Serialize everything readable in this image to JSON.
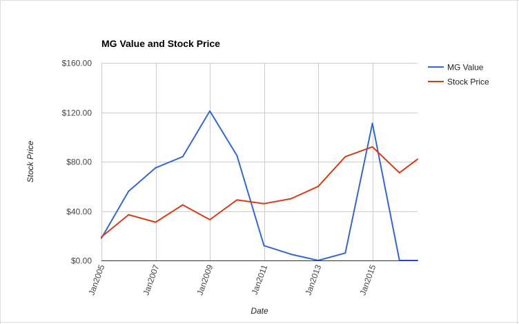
{
  "chart_data": {
    "type": "line",
    "title": "MG Value and Stock Price",
    "xlabel": "Date",
    "ylabel": "Stock Price",
    "x": [
      "2005-01",
      "2006-01",
      "2007-01",
      "2008-01",
      "2009-01",
      "2010-01",
      "2011-01",
      "2012-01",
      "2013-01",
      "2014-01",
      "2015-01",
      "2016-01",
      "2016-09"
    ],
    "x_ticks": [
      "Jan2005",
      "Jan2007",
      "Jan2009",
      "Jan2011",
      "Jan2013",
      "Jan2015"
    ],
    "series": [
      {
        "name": "MG Value",
        "color": "#3366cc",
        "values": [
          18,
          56,
          75,
          84,
          121,
          85,
          12,
          5,
          0,
          6,
          111,
          0,
          0
        ]
      },
      {
        "name": "Stock Price",
        "color": "#dc3912",
        "values": [
          19,
          37,
          31,
          45,
          33,
          49,
          46,
          50,
          60,
          84,
          92,
          71,
          82
        ]
      }
    ],
    "y_ticks": [
      "$0.00",
      "$40.00",
      "$80.00",
      "$120.00",
      "$160.00"
    ],
    "ylim": [
      0,
      160
    ],
    "grid": true,
    "legend": "right"
  }
}
